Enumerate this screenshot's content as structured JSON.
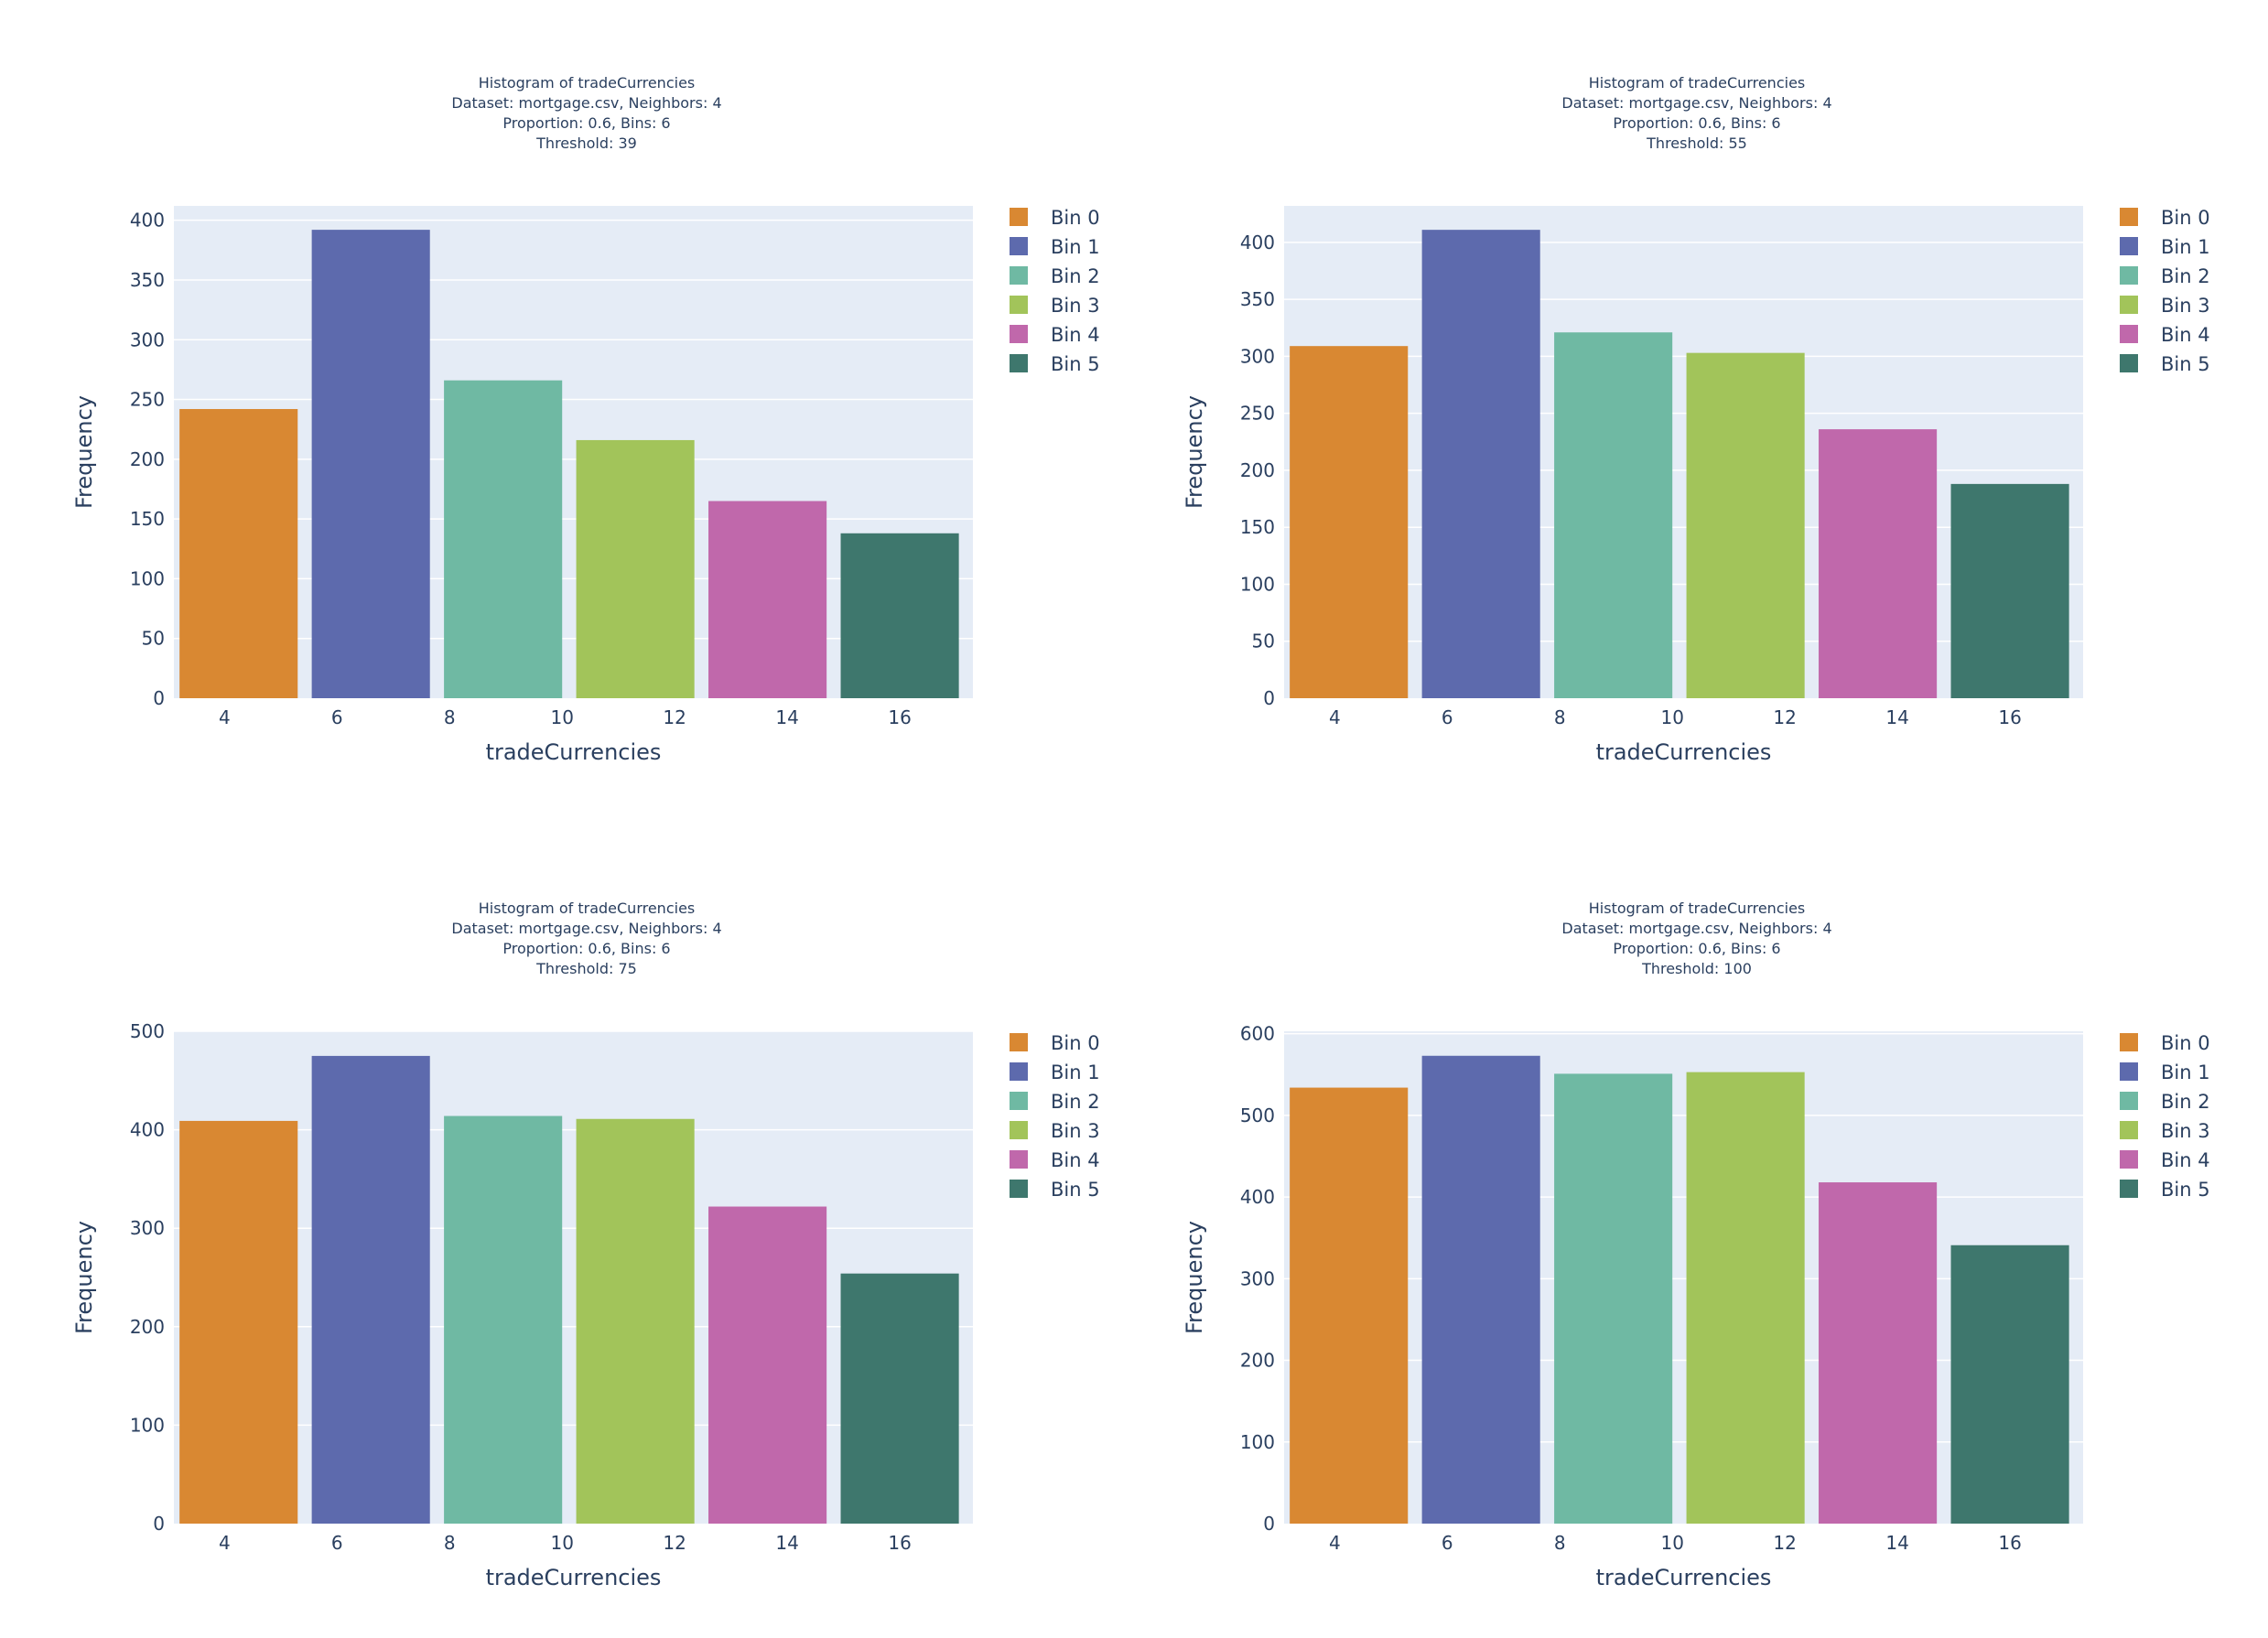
{
  "colors": {
    "plot_bg": "#e5ecf6",
    "grid": "#ffffff",
    "text": "#2a3f5f",
    "bins": [
      "#d98832",
      "#5d6aad",
      "#6fb9a3",
      "#a2c45a",
      "#c068ab",
      "#3e776d"
    ]
  },
  "legend": [
    "Bin 0",
    "Bin 1",
    "Bin 2",
    "Bin 3",
    "Bin 4",
    "Bin 5"
  ],
  "chart_data": [
    {
      "type": "bar",
      "title": [
        "Histogram of  tradeCurrencies",
        "Dataset: mortgage.csv, Neighbors: 4",
        "Proportion: 0.6, Bins: 6",
        "Threshold: 39"
      ],
      "xlabel": "tradeCurrencies",
      "ylabel": "Frequency",
      "xlim": [
        3.1,
        17.3
      ],
      "ylim": [
        0,
        412
      ],
      "xticks": [
        4,
        6,
        8,
        10,
        12,
        14,
        16
      ],
      "yticks": [
        0,
        50,
        100,
        150,
        200,
        250,
        300,
        350,
        400
      ],
      "bins": [
        {
          "name": "Bin 0",
          "x0": 3.2,
          "x1": 5.3,
          "value": 242
        },
        {
          "name": "Bin 1",
          "x0": 5.55,
          "x1": 7.65,
          "value": 392
        },
        {
          "name": "Bin 2",
          "x0": 7.9,
          "x1": 10.0,
          "value": 266
        },
        {
          "name": "Bin 3",
          "x0": 10.25,
          "x1": 12.35,
          "value": 216
        },
        {
          "name": "Bin 4",
          "x0": 12.6,
          "x1": 14.7,
          "value": 165
        },
        {
          "name": "Bin 5",
          "x0": 14.95,
          "x1": 17.05,
          "value": 138
        }
      ]
    },
    {
      "type": "bar",
      "title": [
        "Histogram of  tradeCurrencies",
        "Dataset: mortgage.csv, Neighbors: 4",
        "Proportion: 0.6, Bins: 6",
        "Threshold: 55"
      ],
      "xlabel": "tradeCurrencies",
      "ylabel": "Frequency",
      "xlim": [
        3.1,
        17.3
      ],
      "ylim": [
        0,
        432
      ],
      "xticks": [
        4,
        6,
        8,
        10,
        12,
        14,
        16
      ],
      "yticks": [
        0,
        50,
        100,
        150,
        200,
        250,
        300,
        350,
        400
      ],
      "bins": [
        {
          "name": "Bin 0",
          "x0": 3.2,
          "x1": 5.3,
          "value": 309
        },
        {
          "name": "Bin 1",
          "x0": 5.55,
          "x1": 7.65,
          "value": 411
        },
        {
          "name": "Bin 2",
          "x0": 7.9,
          "x1": 10.0,
          "value": 321
        },
        {
          "name": "Bin 3",
          "x0": 10.25,
          "x1": 12.35,
          "value": 303
        },
        {
          "name": "Bin 4",
          "x0": 12.6,
          "x1": 14.7,
          "value": 236
        },
        {
          "name": "Bin 5",
          "x0": 14.95,
          "x1": 17.05,
          "value": 188
        }
      ]
    },
    {
      "type": "bar",
      "title": [
        "Histogram of  tradeCurrencies",
        "Dataset: mortgage.csv, Neighbors: 4",
        "Proportion: 0.6, Bins: 6",
        "Threshold: 75"
      ],
      "xlabel": "tradeCurrencies",
      "ylabel": "Frequency",
      "xlim": [
        3.1,
        17.3
      ],
      "ylim": [
        0,
        500
      ],
      "xticks": [
        4,
        6,
        8,
        10,
        12,
        14,
        16
      ],
      "yticks": [
        0,
        100,
        200,
        300,
        400,
        500
      ],
      "bins": [
        {
          "name": "Bin 0",
          "x0": 3.2,
          "x1": 5.3,
          "value": 409
        },
        {
          "name": "Bin 1",
          "x0": 5.55,
          "x1": 7.65,
          "value": 475
        },
        {
          "name": "Bin 2",
          "x0": 7.9,
          "x1": 10.0,
          "value": 414
        },
        {
          "name": "Bin 3",
          "x0": 10.25,
          "x1": 12.35,
          "value": 411
        },
        {
          "name": "Bin 4",
          "x0": 12.6,
          "x1": 14.7,
          "value": 322
        },
        {
          "name": "Bin 5",
          "x0": 14.95,
          "x1": 17.05,
          "value": 254
        }
      ]
    },
    {
      "type": "bar",
      "title": [
        "Histogram of  tradeCurrencies",
        "Dataset: mortgage.csv, Neighbors: 4",
        "Proportion: 0.6, Bins: 6",
        "Threshold: 100"
      ],
      "xlabel": "tradeCurrencies",
      "ylabel": "Frequency",
      "xlim": [
        3.1,
        17.3
      ],
      "ylim": [
        0,
        603
      ],
      "xticks": [
        4,
        6,
        8,
        10,
        12,
        14,
        16
      ],
      "yticks": [
        0,
        100,
        200,
        300,
        400,
        500,
        600
      ],
      "bins": [
        {
          "name": "Bin 0",
          "x0": 3.2,
          "x1": 5.3,
          "value": 534
        },
        {
          "name": "Bin 1",
          "x0": 5.55,
          "x1": 7.65,
          "value": 573
        },
        {
          "name": "Bin 2",
          "x0": 7.9,
          "x1": 10.0,
          "value": 551
        },
        {
          "name": "Bin 3",
          "x0": 10.25,
          "x1": 12.35,
          "value": 553
        },
        {
          "name": "Bin 4",
          "x0": 12.6,
          "x1": 14.7,
          "value": 418
        },
        {
          "name": "Bin 5",
          "x0": 14.95,
          "x1": 17.05,
          "value": 341
        }
      ]
    }
  ]
}
